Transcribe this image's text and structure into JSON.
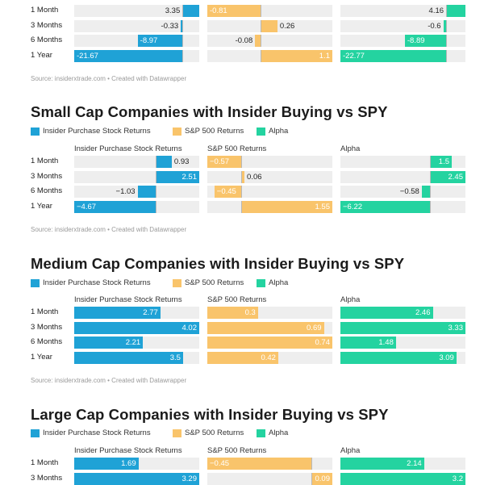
{
  "colors": {
    "insider": "#1fa2d6",
    "sp500": "#f9c46b",
    "alpha": "#24d3a0",
    "track": "#eeeeee"
  },
  "legend": {
    "insider": "Insider Purchase Stock Returns",
    "sp500": "S&P 500 Returns",
    "alpha": "Alpha"
  },
  "source": "Source: insiderxtrade.com • Created with Datawrapper",
  "chart_data": [
    {
      "type": "bar",
      "title": "",
      "categories": [
        "1 Month",
        "3 Months",
        "6 Months",
        "1 Year"
      ],
      "series": [
        {
          "key": "insider",
          "name": "Insider Purchase Stock Returns",
          "values": [
            3.35,
            -0.33,
            -8.97,
            -21.67
          ],
          "labels": [
            "3.35",
            "-0.33",
            "-8.97",
            "-21.67"
          ]
        },
        {
          "key": "sp500",
          "name": "S&P 500 Returns",
          "values": [
            -0.81,
            0.26,
            -0.08,
            1.1
          ],
          "labels": [
            "-0.81",
            "0.26",
            "-0.08",
            "1.1"
          ]
        },
        {
          "key": "alpha",
          "name": "Alpha",
          "values": [
            4.16,
            -0.6,
            -8.89,
            -22.77
          ],
          "labels": [
            "4.16",
            "-0.6",
            "-8.89",
            "-22.77"
          ]
        }
      ]
    },
    {
      "type": "bar",
      "title": "Small Cap Companies with Insider Buying vs SPY",
      "categories": [
        "1 Month",
        "3 Months",
        "6 Months",
        "1 Year"
      ],
      "series": [
        {
          "key": "insider",
          "name": "Insider Purchase Stock Returns",
          "values": [
            0.93,
            2.51,
            -1.03,
            -4.67
          ],
          "labels": [
            "0.93",
            "2.51",
            "−1.03",
            "−4.67"
          ]
        },
        {
          "key": "sp500",
          "name": "S&P 500 Returns",
          "values": [
            -0.57,
            0.06,
            -0.45,
            1.55
          ],
          "labels": [
            "−0.57",
            "0.06",
            "−0.45",
            "1.55"
          ]
        },
        {
          "key": "alpha",
          "name": "Alpha",
          "values": [
            1.5,
            2.45,
            -0.58,
            -6.22
          ],
          "labels": [
            "1.5",
            "2.45",
            "−0.58",
            "−6.22"
          ]
        }
      ]
    },
    {
      "type": "bar",
      "title": "Medium Cap Companies with Insider Buying vs SPY",
      "categories": [
        "1 Month",
        "3 Months",
        "6 Months",
        "1 Year"
      ],
      "series": [
        {
          "key": "insider",
          "name": "Insider Purchase Stock Returns",
          "values": [
            2.77,
            4.02,
            2.21,
            3.5
          ],
          "labels": [
            "2.77",
            "4.02",
            "2.21",
            "3.5"
          ]
        },
        {
          "key": "sp500",
          "name": "S&P 500 Returns",
          "values": [
            0.3,
            0.69,
            0.74,
            0.42
          ],
          "labels": [
            "0.3",
            "0.69",
            "0.74",
            "0.42"
          ]
        },
        {
          "key": "alpha",
          "name": "Alpha",
          "values": [
            2.46,
            3.33,
            1.48,
            3.09
          ],
          "labels": [
            "2.46",
            "3.33",
            "1.48",
            "3.09"
          ]
        }
      ]
    },
    {
      "type": "bar",
      "title": "Large Cap Companies with Insider Buying vs SPY",
      "categories": [
        "1 Month",
        "3 Months"
      ],
      "series": [
        {
          "key": "insider",
          "name": "Insider Purchase Stock Returns",
          "values": [
            1.69,
            3.29
          ],
          "labels": [
            "1.69",
            "3.29"
          ]
        },
        {
          "key": "sp500",
          "name": "S&P 500 Returns",
          "values": [
            -0.45,
            0.09
          ],
          "labels": [
            "−0.45",
            "0.09"
          ]
        },
        {
          "key": "alpha",
          "name": "Alpha",
          "values": [
            2.14,
            3.2
          ],
          "labels": [
            "2.14",
            "3.2"
          ]
        }
      ]
    }
  ]
}
